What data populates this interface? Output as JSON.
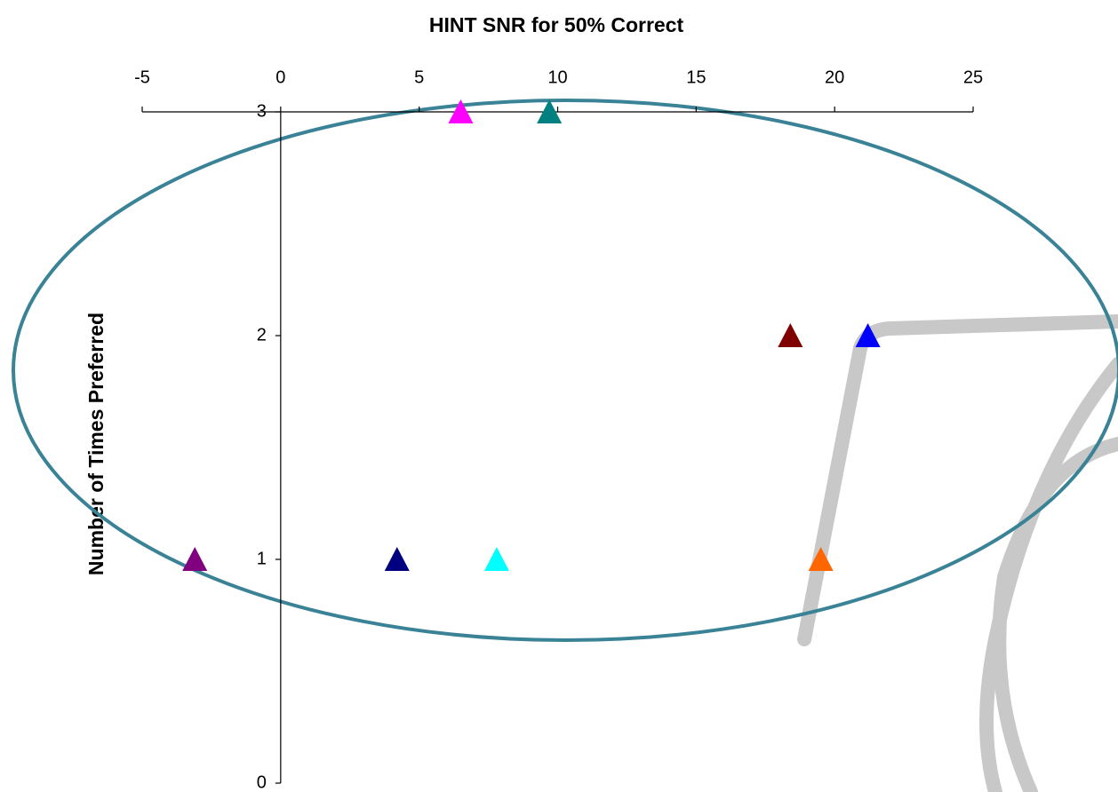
{
  "chart_data": {
    "type": "scatter",
    "title": "HINT SNR for 50% Correct",
    "y_label": "Number of Times Preferred",
    "xlim": [
      -5,
      25
    ],
    "xticks": [
      -5,
      0,
      5,
      10,
      15,
      20,
      25
    ],
    "ylim": [
      0,
      3
    ],
    "yticks": [
      0,
      1,
      2,
      3
    ],
    "marker": "triangle",
    "series": [
      {
        "color": "#ff00ff",
        "x": [
          6.5
        ],
        "values": [
          3
        ]
      },
      {
        "color": "#008080",
        "x": [
          9.7
        ],
        "values": [
          3
        ]
      },
      {
        "color": "#800000",
        "x": [
          18.4
        ],
        "values": [
          2
        ]
      },
      {
        "color": "#0000ff",
        "x": [
          21.2
        ],
        "values": [
          2
        ]
      },
      {
        "color": "#800080",
        "x": [
          -3.1
        ],
        "values": [
          1
        ]
      },
      {
        "color": "#000080",
        "x": [
          4.2
        ],
        "values": [
          1
        ]
      },
      {
        "color": "#00ffff",
        "x": [
          7.8
        ],
        "values": [
          1
        ]
      },
      {
        "color": "#ff6600",
        "x": [
          19.5
        ],
        "values": [
          1
        ]
      }
    ]
  }
}
